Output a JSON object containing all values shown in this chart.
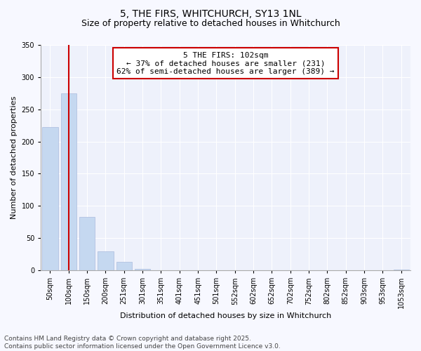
{
  "title": "5, THE FIRS, WHITCHURCH, SY13 1NL",
  "subtitle": "Size of property relative to detached houses in Whitchurch",
  "xlabel": "Distribution of detached houses by size in Whitchurch",
  "ylabel": "Number of detached properties",
  "categories": [
    "50sqm",
    "100sqm",
    "150sqm",
    "200sqm",
    "251sqm",
    "301sqm",
    "351sqm",
    "401sqm",
    "451sqm",
    "501sqm",
    "552sqm",
    "602sqm",
    "652sqm",
    "702sqm",
    "752sqm",
    "802sqm",
    "852sqm",
    "903sqm",
    "953sqm",
    "1053sqm"
  ],
  "values": [
    222,
    275,
    83,
    29,
    13,
    2,
    0,
    0,
    0,
    0,
    0,
    0,
    0,
    0,
    0,
    0,
    0,
    0,
    0,
    1
  ],
  "bar_color": "#c5d8f0",
  "vline_x": 1.0,
  "vline_color": "#cc0000",
  "annotation_line1": "5 THE FIRS: 102sqm",
  "annotation_line2": "← 37% of detached houses are smaller (231)",
  "annotation_line3": "62% of semi-detached houses are larger (389) →",
  "box_edge_color": "#cc0000",
  "ylim": [
    0,
    350
  ],
  "yticks": [
    0,
    50,
    100,
    150,
    200,
    250,
    300,
    350
  ],
  "footer_line1": "Contains HM Land Registry data © Crown copyright and database right 2025.",
  "footer_line2": "Contains public sector information licensed under the Open Government Licence v3.0.",
  "bg_color": "#f7f8ff",
  "plot_bg_color": "#eef1fb",
  "title_fontsize": 10,
  "subtitle_fontsize": 9,
  "axis_label_fontsize": 8,
  "tick_fontsize": 7,
  "annotation_fontsize": 8,
  "footer_fontsize": 6.5
}
